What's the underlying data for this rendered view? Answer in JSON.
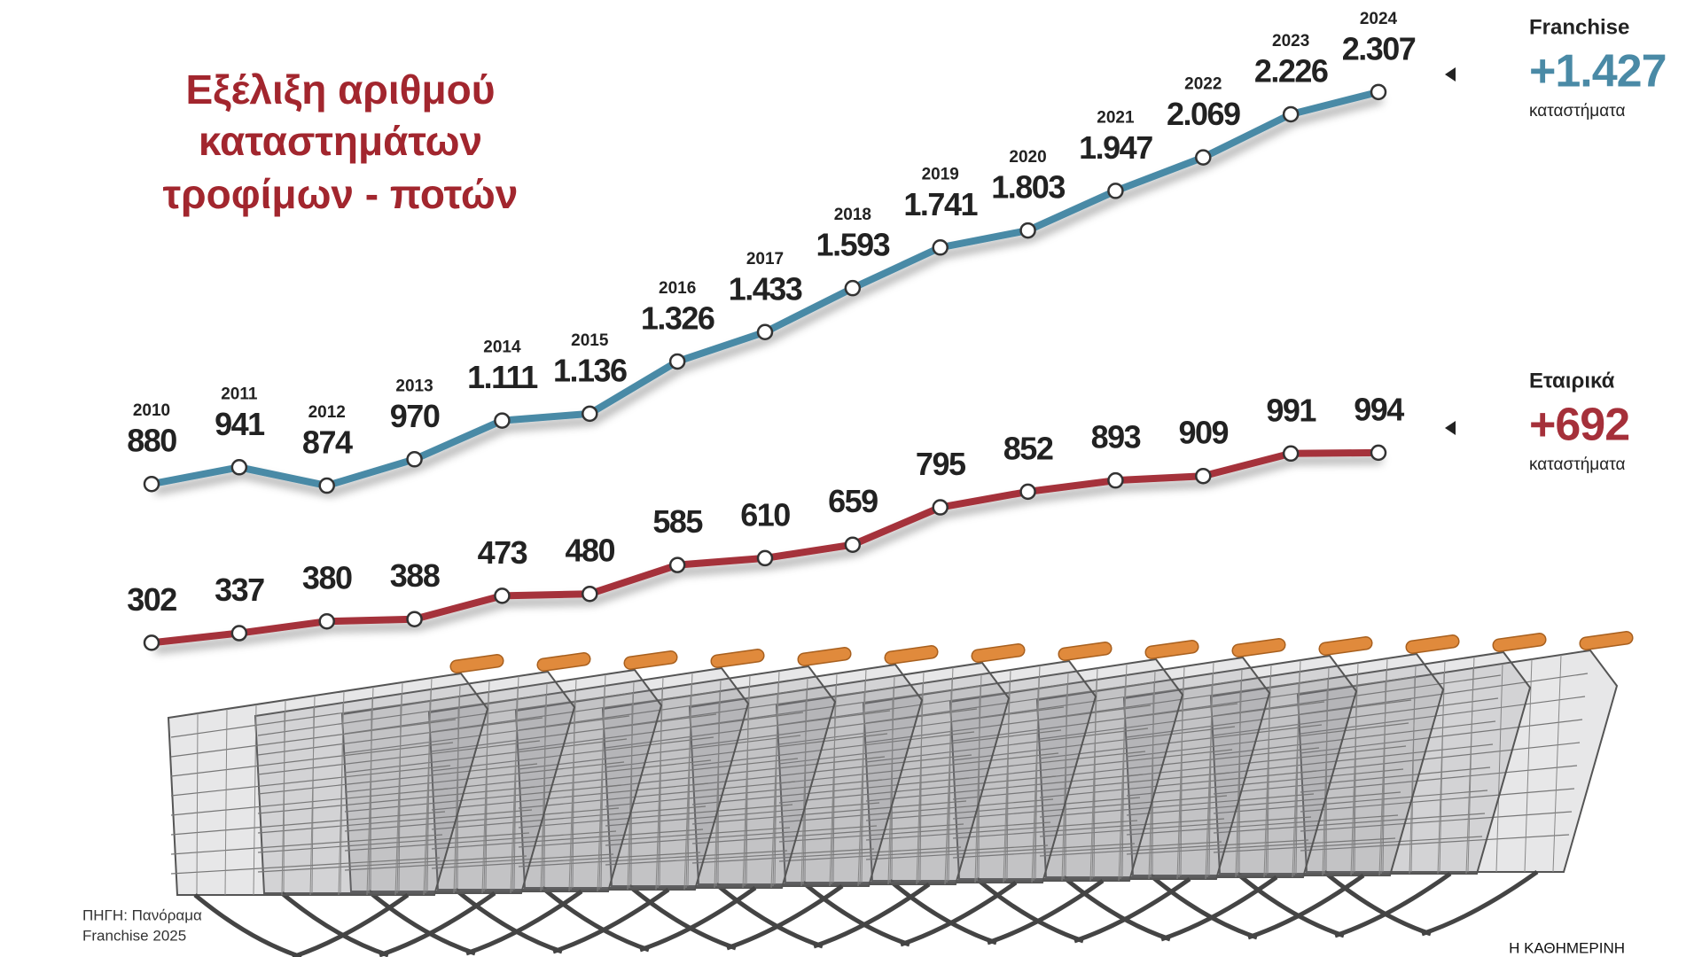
{
  "chart_data": {
    "type": "line",
    "title": [
      "Εξέλιξη αριθμού",
      "καταστημάτων",
      "τροφίμων - ποτών"
    ],
    "categories": [
      "2010",
      "2011",
      "2012",
      "2013",
      "2014",
      "2015",
      "2016",
      "2017",
      "2018",
      "2019",
      "2020",
      "2021",
      "2022",
      "2023",
      "2024"
    ],
    "series": [
      {
        "name": "Franchise",
        "color": "#4a8aa6",
        "values": [
          880,
          941,
          874,
          970,
          1111,
          1136,
          1326,
          1433,
          1593,
          1741,
          1803,
          1947,
          2069,
          2226,
          2307
        ],
        "value_labels": [
          "880",
          "941",
          "874",
          "970",
          "1.111",
          "1.136",
          "1.326",
          "1.433",
          "1.593",
          "1.741",
          "1.803",
          "1.947",
          "2.069",
          "2.226",
          "2.307"
        ],
        "change_label": "+1.427",
        "change_unit": "καταστήματα"
      },
      {
        "name": "Εταιρικά",
        "color": "#a5303a",
        "values": [
          302,
          337,
          380,
          388,
          473,
          480,
          585,
          610,
          659,
          795,
          852,
          893,
          909,
          991,
          994
        ],
        "change_label": "+692",
        "change_unit": "καταστήματα"
      }
    ],
    "ylim": [
      0,
      2600
    ],
    "legend": "right",
    "source": [
      "ΠΗΓΗ: Πανόραμα",
      "Franchise 2025"
    ],
    "credit": "Η ΚΑΘΗΜΕΡΙΝΗ"
  }
}
